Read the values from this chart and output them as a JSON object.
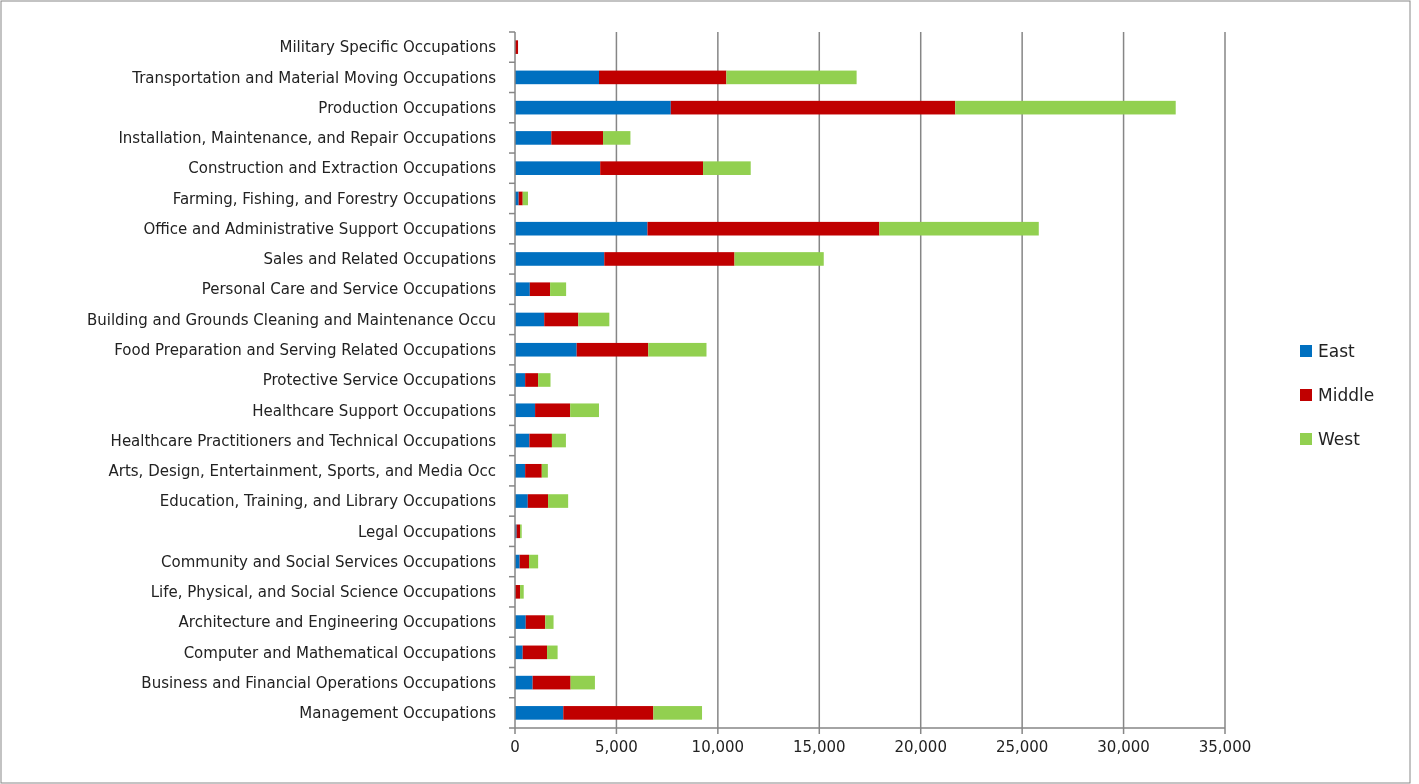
{
  "chart_data": {
    "type": "bar",
    "orientation": "horizontal",
    "stacked": true,
    "categories": [
      "Military Specific Occupations",
      "Transportation and Material Moving Occupations",
      "Production Occupations",
      "Installation, Maintenance, and Repair Occupations",
      "Construction and Extraction Occupations",
      "Farming, Fishing, and Forestry Occupations",
      "Office and Administrative Support Occupations",
      "Sales and Related Occupations",
      "Personal Care and Service Occupations",
      "Building and Grounds Cleaning and Maintenance Occu",
      "Food Preparation and Serving Related Occupations",
      "Protective Service Occupations",
      "Healthcare Support Occupations",
      "Healthcare Practitioners and Technical Occupations",
      "Arts, Design, Entertainment, Sports, and Media Occ",
      "Education, Training, and Library Occupations",
      "Legal Occupations",
      "Community and Social Services Occupations",
      "Life, Physical, and Social Science Occupations",
      "Architecture and Engineering Occupations",
      "Computer and Mathematical Occupations",
      "Business and Financial Operations Occupations",
      "Management Occupations"
    ],
    "series": [
      {
        "name": "East",
        "color": "#0070c0",
        "values": [
          null,
          4140,
          7680,
          1790,
          4200,
          180,
          6530,
          4400,
          730,
          1440,
          3040,
          500,
          990,
          710,
          500,
          630,
          80,
          230,
          null,
          530,
          380,
          870,
          2380
        ]
      },
      {
        "name": "Middle",
        "color": "#c00000",
        "values": [
          150,
          6280,
          14020,
          2550,
          5070,
          200,
          11430,
          6420,
          1000,
          1680,
          3530,
          640,
          1730,
          1110,
          820,
          1000,
          170,
          460,
          250,
          960,
          1200,
          1870,
          4440
        ]
      },
      {
        "name": "West",
        "color": "#92d050",
        "values": [
          0,
          6420,
          10870,
          1350,
          2350,
          260,
          7860,
          4400,
          790,
          1530,
          2870,
          610,
          1420,
          690,
          300,
          990,
          80,
          450,
          180,
          410,
          520,
          1200,
          2400
        ]
      }
    ],
    "xlim": [
      0,
      35000
    ],
    "xticks": [
      {
        "value": 0,
        "label": "0"
      },
      {
        "value": 5000,
        "label": "5,000"
      },
      {
        "value": 10000,
        "label": "10,000"
      },
      {
        "value": 15000,
        "label": "15,000"
      },
      {
        "value": 20000,
        "label": "20,000"
      },
      {
        "value": 25000,
        "label": "25,000"
      },
      {
        "value": 30000,
        "label": "30,000"
      },
      {
        "value": 35000,
        "label": "35,000"
      }
    ],
    "grid": "x",
    "legend": "right"
  }
}
